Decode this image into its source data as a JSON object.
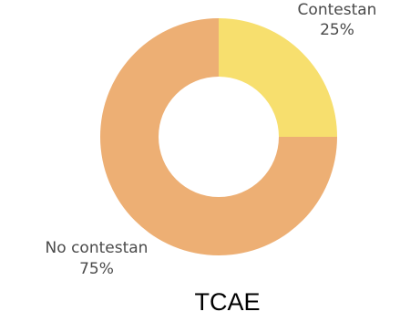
{
  "chart_data": {
    "type": "pie",
    "variant": "donut",
    "title": "TCAE",
    "categories": [
      "Contestan",
      "No contestan"
    ],
    "values": [
      25,
      75
    ],
    "value_labels": [
      "25%",
      "75%"
    ],
    "colors": [
      "#f7df6e",
      "#edaf74"
    ],
    "legend": "none"
  }
}
